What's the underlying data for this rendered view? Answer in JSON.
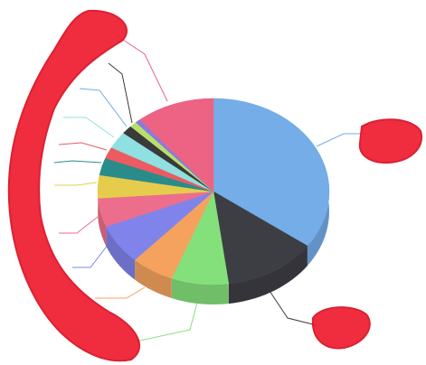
{
  "chart_data": {
    "type": "pie",
    "categories": [
      null,
      null,
      null,
      null,
      null,
      null,
      null,
      null,
      null,
      null,
      null,
      null,
      null,
      null
    ],
    "values": [
      35,
      13,
      8,
      6,
      7,
      5,
      4,
      3,
      2,
      3,
      1.5,
      1,
      0.7,
      11
    ],
    "colors": [
      "#74ade8",
      "#3d3d44",
      "#84e07a",
      "#f4a25e",
      "#8083ea",
      "#ec6e8c",
      "#e6cc4c",
      "#2a8c8a",
      "#ec5a62",
      "#8fe0e0",
      "#3a3a3a",
      "#b6e06a",
      "#8a7ae0",
      "#ec6384"
    ]
  }
}
